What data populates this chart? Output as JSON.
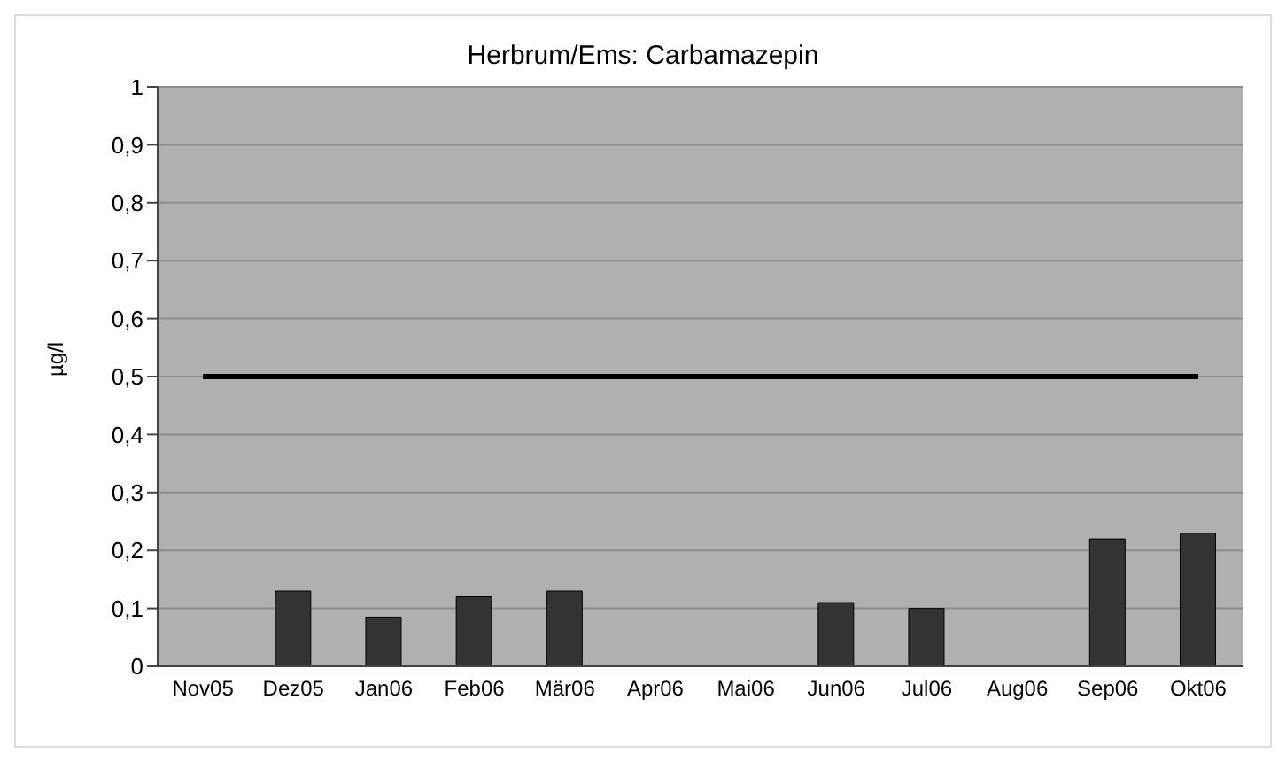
{
  "chart_data": {
    "type": "bar",
    "title": "Herbrum/Ems: Carbamazepin",
    "ylabel": "µg/l",
    "categories": [
      "Nov05",
      "Dez05",
      "Jan06",
      "Feb06",
      "Mär06",
      "Apr06",
      "Mai06",
      "Jun06",
      "Jul06",
      "Aug06",
      "Sep06",
      "Okt06"
    ],
    "series": [
      {
        "color": "#333333",
        "values": [
          null,
          0.13,
          0.085,
          0.12,
          0.13,
          null,
          null,
          0.11,
          0.1,
          null,
          0.22,
          0.23
        ]
      },
      {
        "type": "line",
        "color": "#000000",
        "values": [
          0.5,
          0.5,
          0.5,
          0.5,
          0.5,
          0.5,
          0.5,
          0.5,
          0.5,
          0.5,
          0.5,
          0.5
        ]
      }
    ],
    "ylim": [
      0,
      1
    ],
    "yticks": [
      0,
      {
        "value": 0.1,
        "label": "0,1"
      },
      {
        "value": 0.2,
        "label": "0,2"
      },
      {
        "value": 0.3,
        "label": "0,3"
      },
      {
        "value": 0.4,
        "label": "0,4"
      },
      {
        "value": 0.5,
        "label": "0,5"
      },
      {
        "value": 0.6,
        "label": "0,6"
      },
      {
        "value": 0.7,
        "label": "0,7"
      },
      {
        "value": 0.8,
        "label": "0,8"
      },
      {
        "value": 0.9,
        "label": "0,9"
      },
      1
    ],
    "grid": "y",
    "legend": false,
    "marker": "none",
    "line_style": "solid"
  }
}
